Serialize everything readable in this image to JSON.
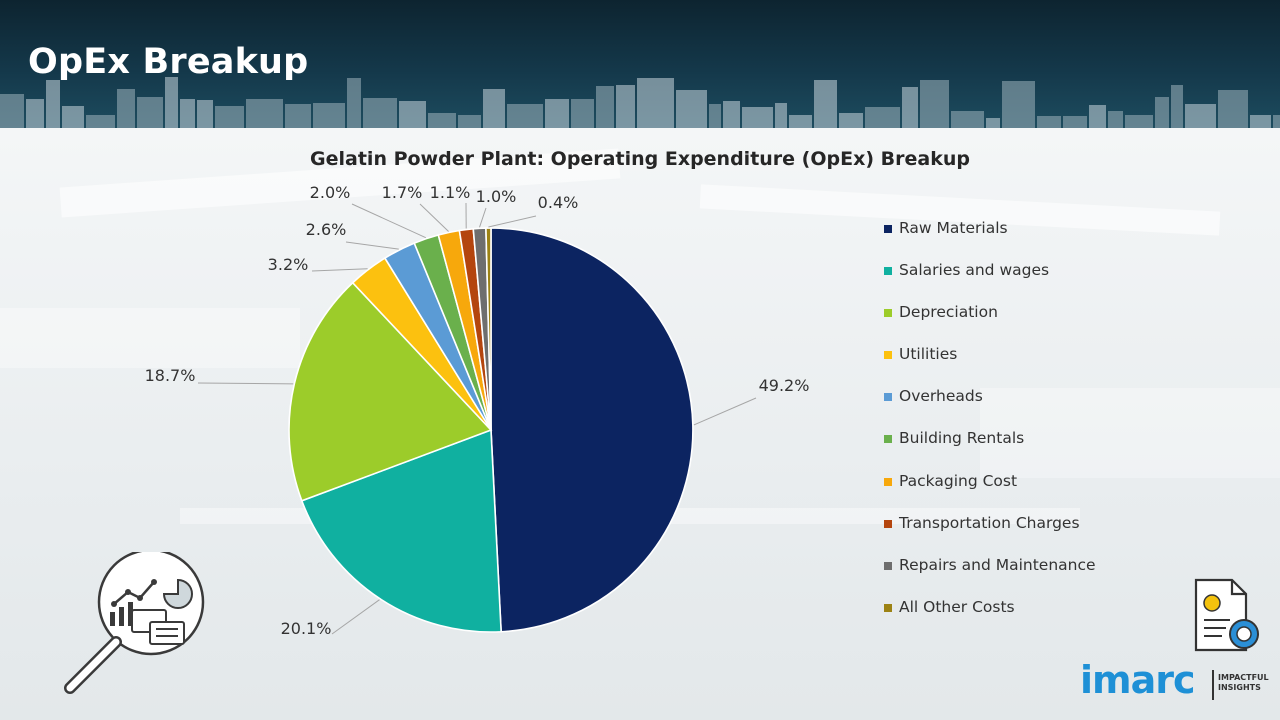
{
  "page": {
    "title": "OpEx Breakup"
  },
  "chart_data": {
    "type": "pie",
    "title": "Gelatin Powder Plant: Operating Expenditure (OpEx) Breakup",
    "categories": [
      "Raw Materials",
      "Salaries and wages",
      "Depreciation",
      "Utilities",
      "Overheads",
      "Building Rentals",
      "Packaging Cost",
      "Transportation Charges",
      "Repairs and Maintenance",
      "All Other Costs"
    ],
    "values": [
      49.2,
      20.1,
      18.7,
      3.2,
      2.6,
      2.0,
      1.7,
      1.1,
      1.0,
      0.4
    ],
    "data_labels": [
      "49.2%",
      "20.1%",
      "18.7%",
      "3.2%",
      "2.6%",
      "2.0%",
      "1.7%",
      "1.1%",
      "1.0%",
      "0.4%"
    ],
    "colors": [
      "#0c2461",
      "#10b0a0",
      "#9ccc2a",
      "#fcc10f",
      "#5b9bd5",
      "#6ab04c",
      "#f7a80c",
      "#b4450e",
      "#6e6e6e",
      "#9c8214"
    ],
    "start_angle": "12 o'clock",
    "direction": "clockwise",
    "legend_position": "right"
  },
  "logo": {
    "name": "imarc",
    "tagline_line1": "IMPACTFUL",
    "tagline_line2": "INSIGHTS"
  },
  "icons": {
    "left": "magnifier-analytics-icon",
    "right": "cost-report-icon"
  }
}
